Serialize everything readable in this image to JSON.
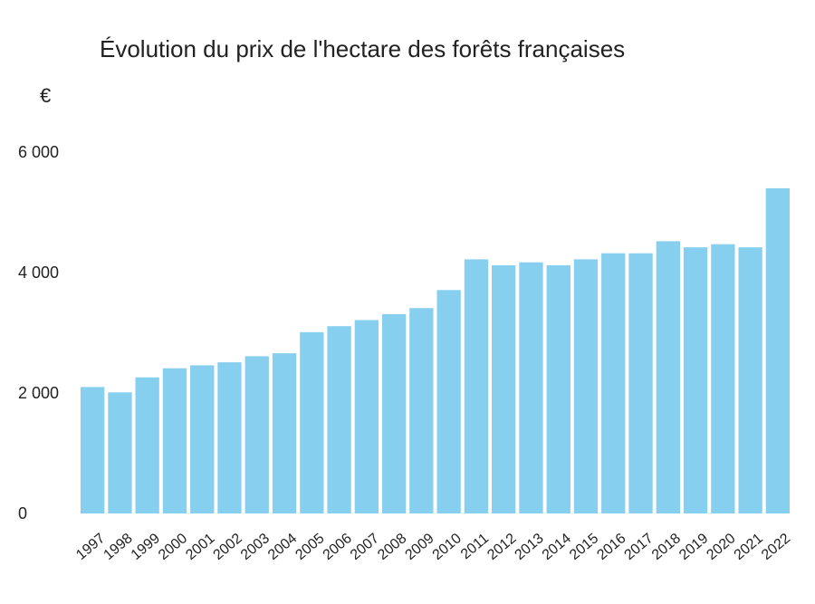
{
  "chart_data": {
    "type": "bar",
    "title": "Évolution du prix de l'hectare des forêts françaises",
    "ylabel": "€",
    "xlabel": "",
    "categories": [
      "1997",
      "1998",
      "1999",
      "2000",
      "2001",
      "2002",
      "2003",
      "2004",
      "2005",
      "2006",
      "2007",
      "2008",
      "2009",
      "2010",
      "2011",
      "2012",
      "2013",
      "2014",
      "2015",
      "2016",
      "2017",
      "2018",
      "2019",
      "2020",
      "2021",
      "2022"
    ],
    "values": [
      2100,
      2010,
      2260,
      2410,
      2460,
      2510,
      2610,
      2660,
      3010,
      3110,
      3210,
      3310,
      3410,
      3710,
      4220,
      4120,
      4170,
      4120,
      4220,
      4320,
      4320,
      4520,
      4420,
      4470,
      4420,
      5400
    ],
    "yticks": [
      0,
      2000,
      4000,
      6000
    ],
    "ytick_labels": [
      "0",
      "2 000",
      "4 000",
      "6 000"
    ],
    "ylim": [
      0,
      6000
    ],
    "grid": false,
    "bar_color": "#87cfef"
  }
}
